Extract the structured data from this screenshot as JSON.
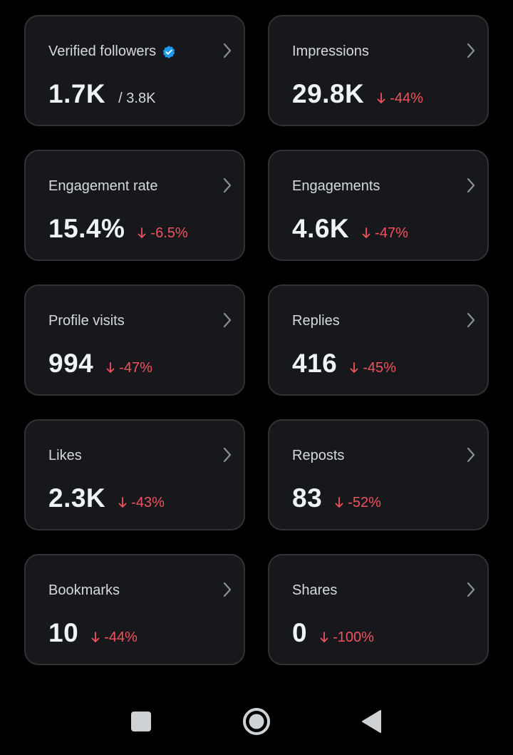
{
  "colors": {
    "background": "#000000",
    "card_bg": "#16181c",
    "card_border": "#2f3336",
    "negative": "#f0535e",
    "verified": "#1d9bf0"
  },
  "cards": [
    {
      "title": "Verified followers",
      "value": "1.7K",
      "total": "/ 3.8K",
      "icon": "verified-badge-icon"
    },
    {
      "title": "Impressions",
      "value": "29.8K",
      "change": "-44%"
    },
    {
      "title": "Engagement rate",
      "value": "15.4%",
      "change": "-6.5%"
    },
    {
      "title": "Engagements",
      "value": "4.6K",
      "change": "-47%"
    },
    {
      "title": "Profile visits",
      "value": "994",
      "change": "-47%"
    },
    {
      "title": "Replies",
      "value": "416",
      "change": "-45%"
    },
    {
      "title": "Likes",
      "value": "2.3K",
      "change": "-43%"
    },
    {
      "title": "Reposts",
      "value": "83",
      "change": "-52%"
    },
    {
      "title": "Bookmarks",
      "value": "10",
      "change": "-44%"
    },
    {
      "title": "Shares",
      "value": "0",
      "change": "-100%"
    }
  ],
  "navbar": {
    "buttons": [
      "recents-square-icon",
      "home-circle-icon",
      "back-triangle-icon"
    ]
  }
}
